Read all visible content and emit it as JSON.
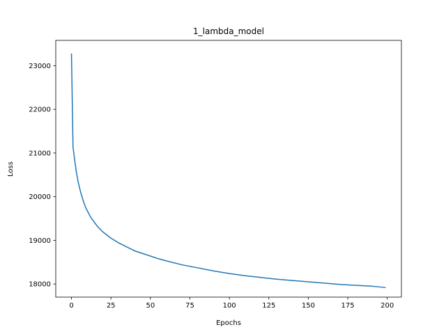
{
  "chart_data": {
    "type": "line",
    "title": "1_lambda_model",
    "xlabel": "Epochs",
    "ylabel": "Loss",
    "xlim": [
      -9.95,
      208.95
    ],
    "ylim": [
      17700,
      23580
    ],
    "xticks": [
      0,
      25,
      50,
      75,
      100,
      125,
      150,
      175,
      200
    ],
    "yticks": [
      18000,
      19000,
      20000,
      21000,
      22000,
      23000
    ],
    "grid": false,
    "series": [
      {
        "color": "#1f77b4",
        "x": [
          0,
          1,
          2,
          3,
          4,
          5,
          6,
          7,
          8,
          9,
          10,
          12,
          14,
          16,
          18,
          20,
          25,
          30,
          35,
          40,
          45,
          50,
          55,
          60,
          70,
          80,
          90,
          100,
          110,
          120,
          130,
          140,
          150,
          160,
          170,
          180,
          190,
          199
        ],
        "y": [
          23280,
          21130,
          20850,
          20590,
          20380,
          20220,
          20080,
          19960,
          19850,
          19750,
          19680,
          19540,
          19440,
          19340,
          19260,
          19190,
          19050,
          18940,
          18850,
          18760,
          18700,
          18640,
          18580,
          18530,
          18440,
          18370,
          18300,
          18240,
          18190,
          18150,
          18110,
          18080,
          18050,
          18020,
          17990,
          17970,
          17950,
          17920
        ]
      }
    ]
  }
}
